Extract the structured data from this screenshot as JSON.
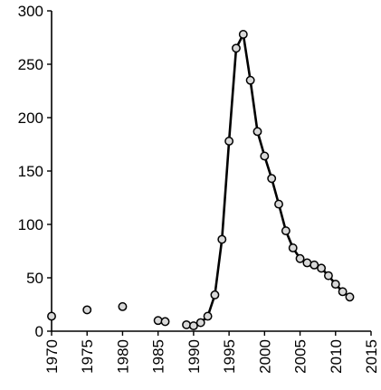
{
  "chart_data": {
    "type": "line",
    "title": "",
    "xlabel": "",
    "ylabel": "",
    "xlim": [
      1970,
      2015
    ],
    "ylim": [
      0,
      300
    ],
    "x_ticks": [
      1970,
      1975,
      1980,
      1985,
      1990,
      1995,
      2000,
      2005,
      2010,
      2015
    ],
    "y_ticks": [
      0,
      50,
      100,
      150,
      200,
      250,
      300
    ],
    "x_tick_labels": [
      "1970",
      "1975",
      "1980",
      "1985",
      "1990",
      "1995",
      "2000",
      "2005",
      "2010",
      "2015"
    ],
    "y_tick_labels": [
      "0",
      "50",
      "100",
      "150",
      "200",
      "250",
      "300"
    ],
    "grid": false,
    "legend": "none",
    "colors": {
      "axis": "#000000",
      "line": "#000000",
      "marker_fill": "#d9d9d9",
      "marker_stroke": "#000000"
    },
    "series": [
      {
        "line": false,
        "points": [
          {
            "x": 1970,
            "y": 14
          },
          {
            "x": 1975,
            "y": 20
          },
          {
            "x": 1980,
            "y": 23
          },
          {
            "x": 1985,
            "y": 10
          },
          {
            "x": 1986,
            "y": 9
          }
        ]
      },
      {
        "line": true,
        "points": [
          {
            "x": 1989,
            "y": 6
          },
          {
            "x": 1990,
            "y": 5
          },
          {
            "x": 1991,
            "y": 8
          },
          {
            "x": 1992,
            "y": 14
          },
          {
            "x": 1993,
            "y": 34
          },
          {
            "x": 1994,
            "y": 86
          },
          {
            "x": 1995,
            "y": 178
          },
          {
            "x": 1996,
            "y": 265
          },
          {
            "x": 1997,
            "y": 278
          },
          {
            "x": 1998,
            "y": 235
          },
          {
            "x": 1999,
            "y": 187
          },
          {
            "x": 2000,
            "y": 164
          },
          {
            "x": 2001,
            "y": 143
          },
          {
            "x": 2002,
            "y": 119
          },
          {
            "x": 2003,
            "y": 94
          },
          {
            "x": 2004,
            "y": 78
          },
          {
            "x": 2005,
            "y": 68
          },
          {
            "x": 2006,
            "y": 64
          },
          {
            "x": 2007,
            "y": 62
          },
          {
            "x": 2008,
            "y": 59
          },
          {
            "x": 2009,
            "y": 52
          },
          {
            "x": 2010,
            "y": 44
          },
          {
            "x": 2011,
            "y": 37
          },
          {
            "x": 2012,
            "y": 32
          }
        ]
      }
    ]
  }
}
